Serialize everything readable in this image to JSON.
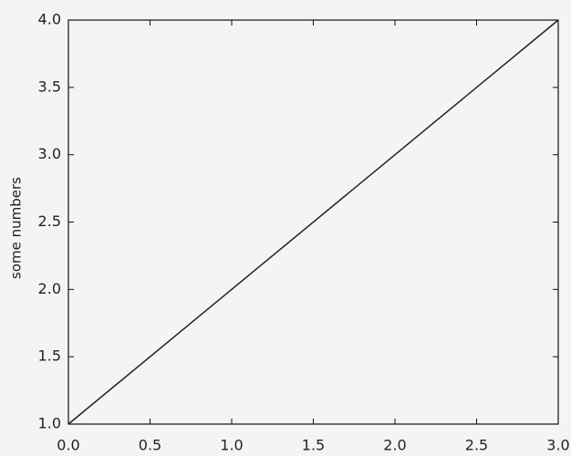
{
  "chart_data": {
    "type": "line",
    "ylabel": "some numbers",
    "x": [
      0,
      1,
      2,
      3
    ],
    "values": [
      1,
      2,
      3,
      4
    ],
    "color": "#222222",
    "xlim": [
      0,
      3
    ],
    "ylim": [
      1,
      4
    ],
    "xticks": [
      {
        "value": 0,
        "label": "0.0"
      },
      0.5,
      {
        "value": 1,
        "label": "1.0"
      },
      1.5,
      {
        "value": 2,
        "label": "2.0"
      },
      2.5,
      {
        "value": 3,
        "label": "3.0"
      }
    ],
    "yticks": [
      {
        "value": 1,
        "label": "1.0"
      },
      1.5,
      {
        "value": 2,
        "label": "2.0"
      },
      2.5,
      {
        "value": 3,
        "label": "3.0"
      },
      3.5,
      {
        "value": 4,
        "label": "4.0"
      }
    ]
  }
}
